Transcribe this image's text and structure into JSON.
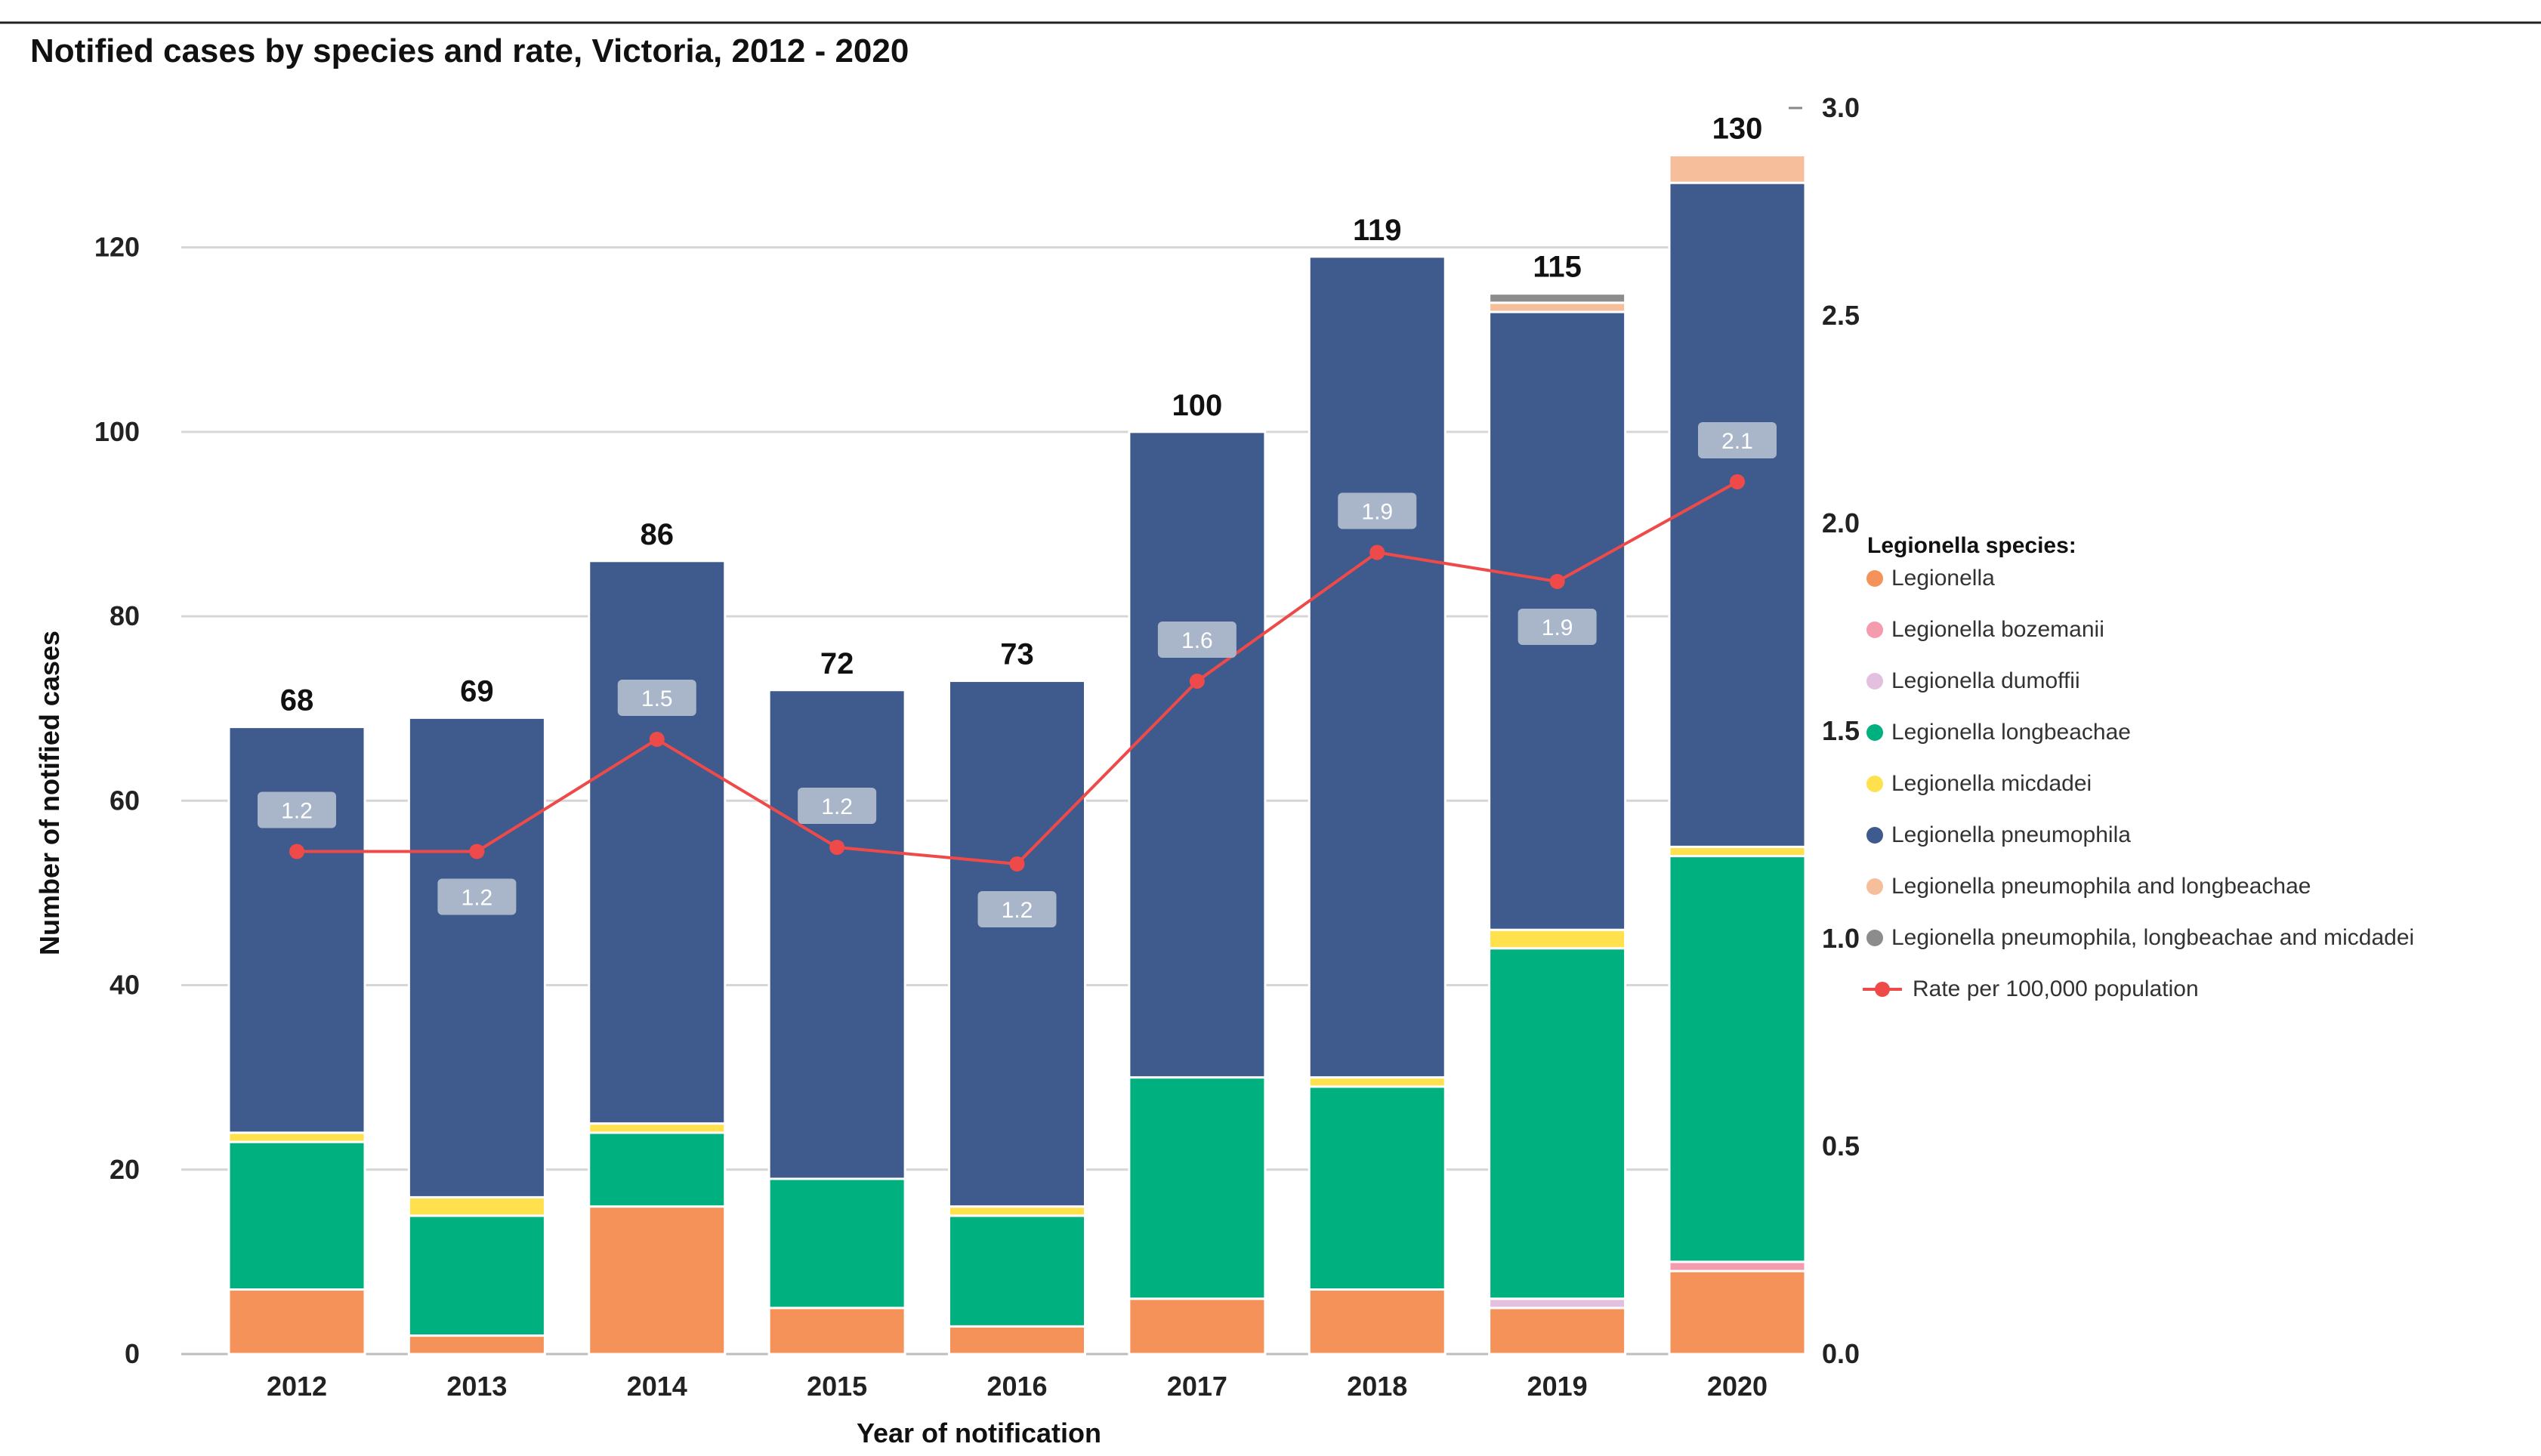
{
  "chart_data": {
    "type": "bar",
    "stacked": true,
    "title": "Notified cases by species and rate, Victoria, 2012 - 2020",
    "xlabel": "Year of notification",
    "ylabel": "Number of notified cases",
    "ylim": [
      0,
      137
    ],
    "y_ticks": [
      0,
      20,
      40,
      60,
      80,
      100,
      120
    ],
    "y2lim": [
      0,
      3.0
    ],
    "y2_ticks": [
      "0.0",
      "0.5",
      "1.0",
      "1.5",
      "2.0",
      "2.5",
      "3.0"
    ],
    "grid": true,
    "legend_position": "right",
    "legend_title": "Legionella species:",
    "categories": [
      "2012",
      "2013",
      "2014",
      "2015",
      "2016",
      "2017",
      "2018",
      "2019",
      "2020"
    ],
    "totals": [
      68,
      69,
      86,
      72,
      73,
      100,
      119,
      115,
      130
    ],
    "series": [
      {
        "name": "Legionella",
        "color": "#f4925a",
        "values": [
          7,
          2,
          16,
          5,
          3,
          6,
          7,
          5,
          9
        ]
      },
      {
        "name": "Legionella bozemanii",
        "color": "#f49cae",
        "values": [
          0,
          0,
          0,
          0,
          0,
          0,
          0,
          0,
          1
        ]
      },
      {
        "name": "Legionella dumoffii",
        "color": "#e3bfe0",
        "values": [
          0,
          0,
          0,
          0,
          0,
          0,
          0,
          1,
          0
        ]
      },
      {
        "name": "Legionella longbeachae",
        "color": "#00b07e",
        "values": [
          16,
          13,
          8,
          14,
          12,
          24,
          22,
          38,
          44
        ]
      },
      {
        "name": "Legionella micdadei",
        "color": "#ffe14d",
        "values": [
          1,
          2,
          1,
          0,
          1,
          0,
          1,
          2,
          1
        ]
      },
      {
        "name": "Legionella pneumophila",
        "color": "#3f5a8c",
        "values": [
          44,
          52,
          61,
          53,
          57,
          70,
          89,
          67,
          72
        ]
      },
      {
        "name": "Legionella pneumophila and longbeachae",
        "color": "#f7be9c",
        "values": [
          0,
          0,
          0,
          0,
          0,
          0,
          0,
          1,
          3
        ]
      },
      {
        "name": "Legionella pneumophila, longbeachae and micdadei",
        "color": "#8c8c8c",
        "values": [
          0,
          0,
          0,
          0,
          0,
          0,
          0,
          1,
          0
        ]
      }
    ],
    "rate_series": {
      "name": "Rate per 100,000 population",
      "color": "#ef4a4a",
      "values": [
        1.21,
        1.21,
        1.48,
        1.22,
        1.18,
        1.62,
        1.93,
        1.86,
        2.1
      ],
      "labels": [
        "1.2",
        "1.2",
        "1.5",
        "1.2",
        "1.2",
        "1.6",
        "1.9",
        "1.9",
        "2.1"
      ]
    }
  }
}
